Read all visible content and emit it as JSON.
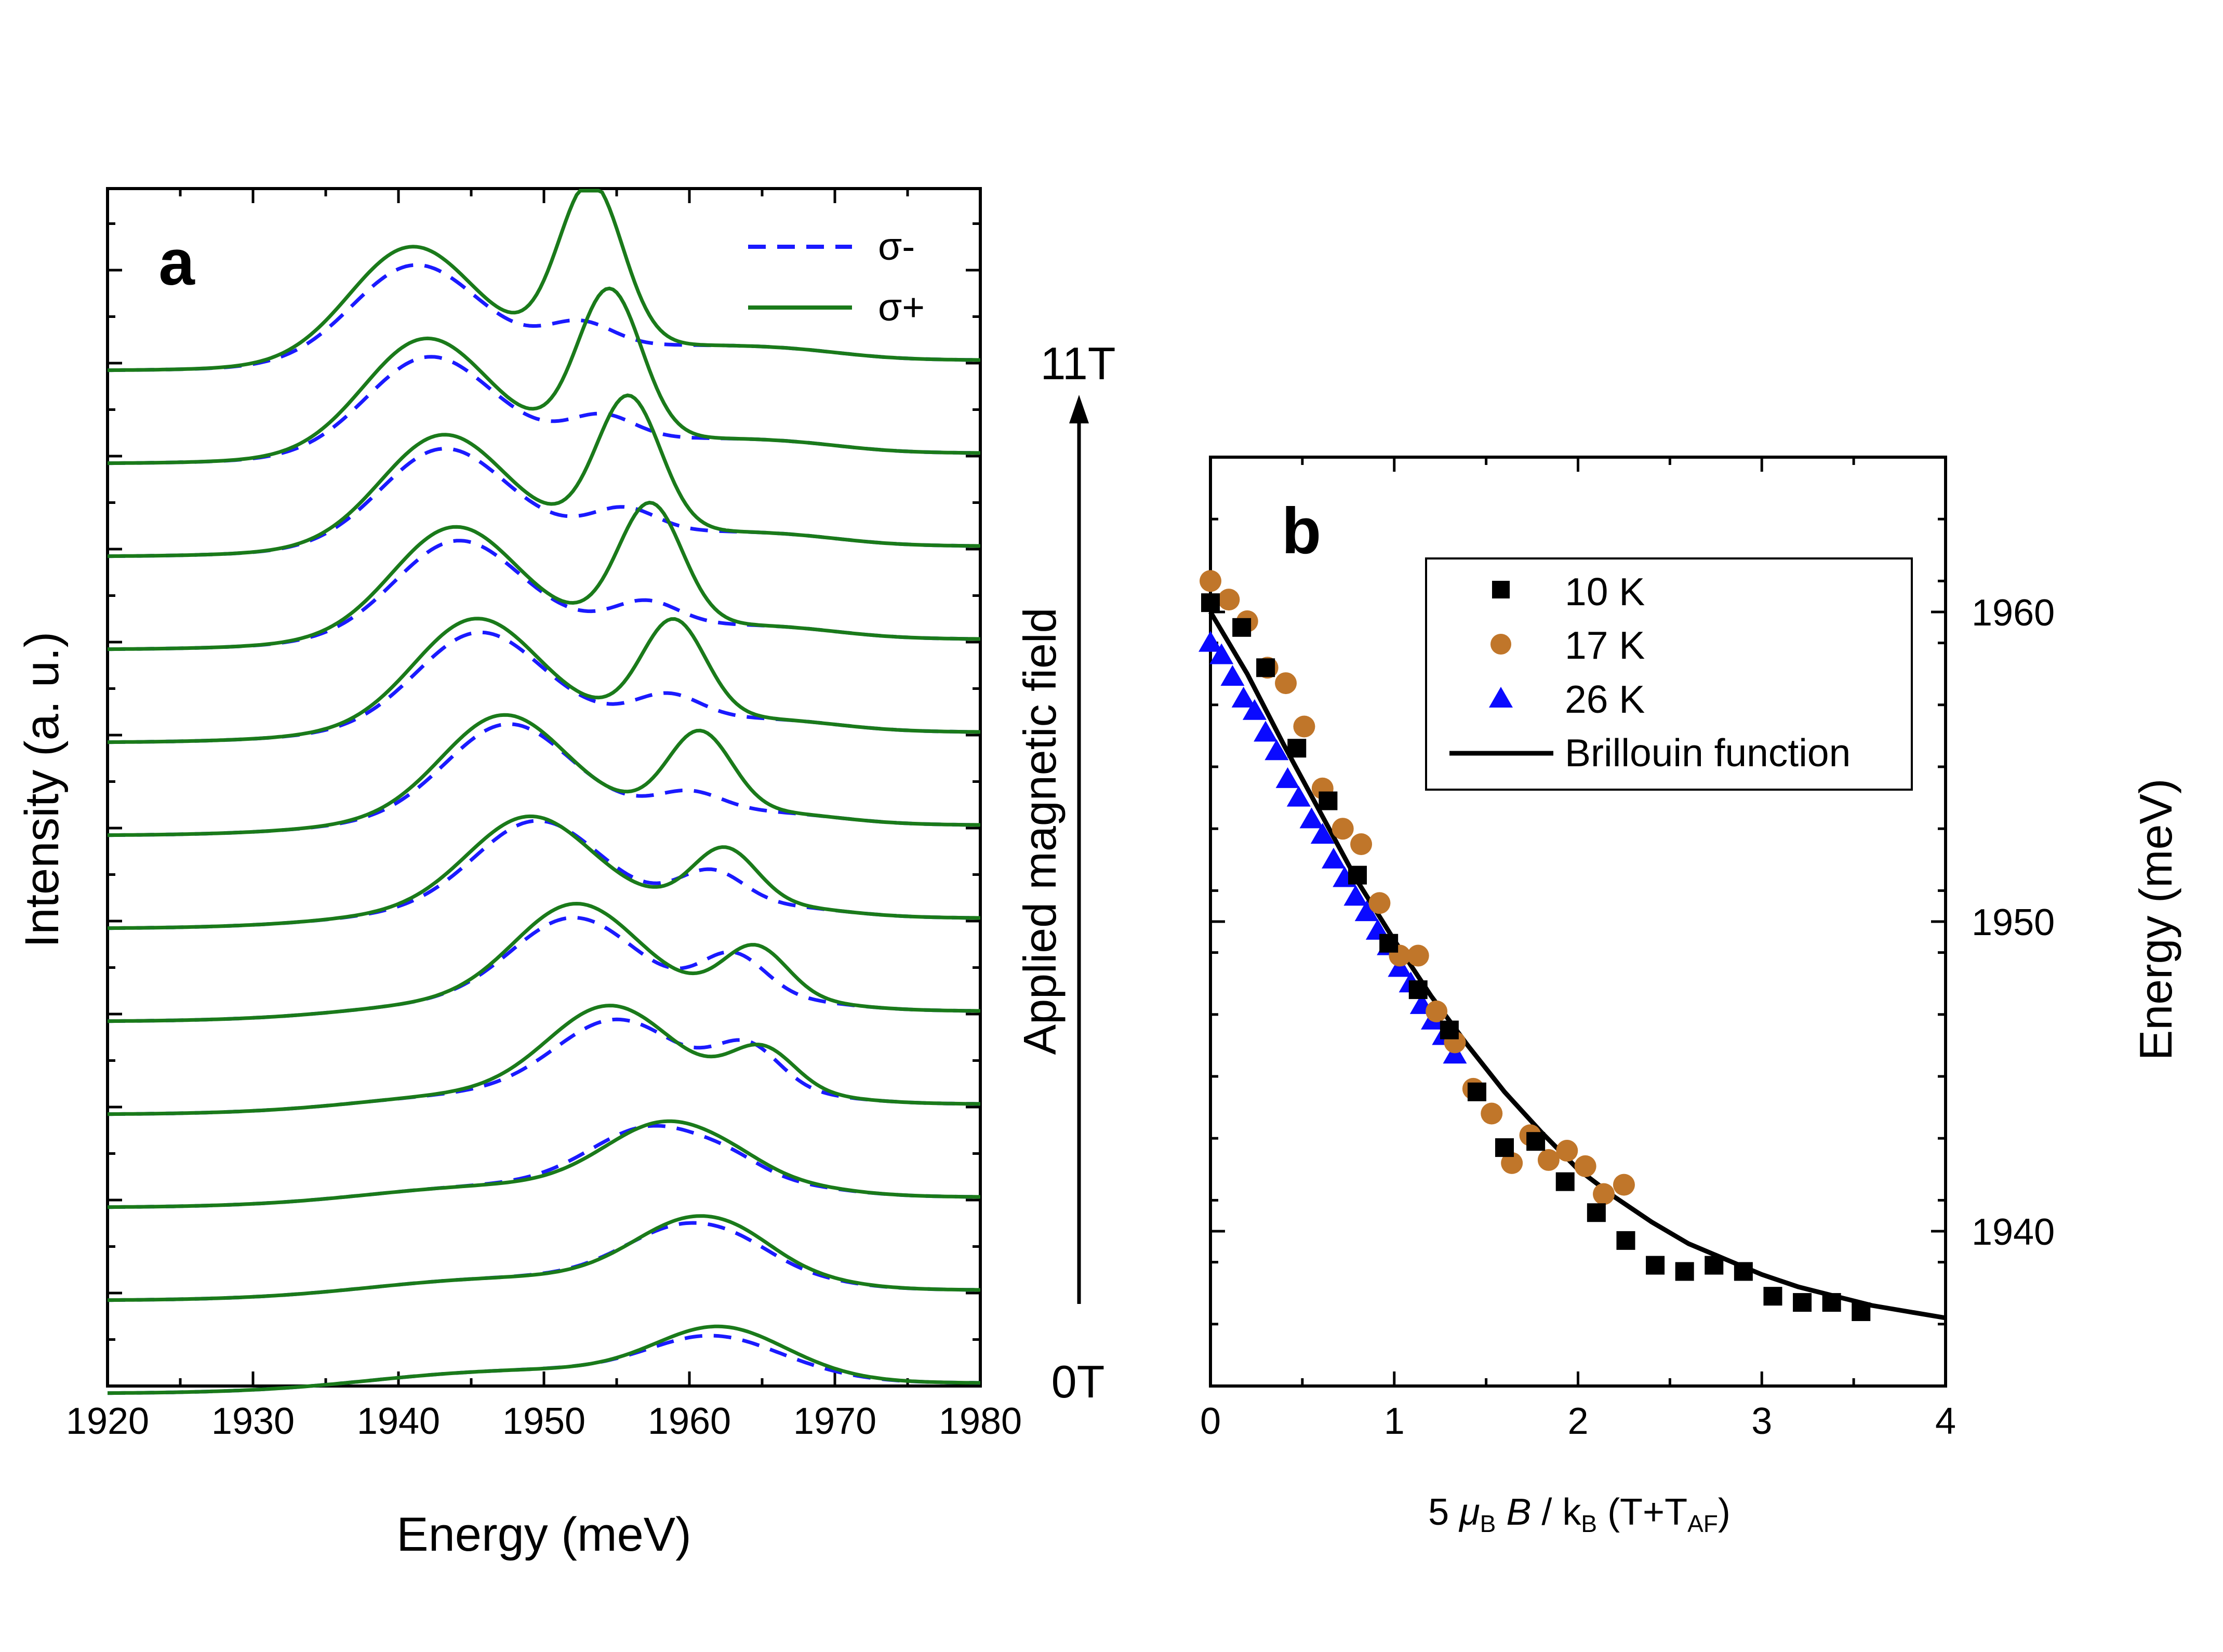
{
  "colors": {
    "sigma_minus": "#1a1aff",
    "sigma_plus": "#1a7a1a",
    "data_10K": "#000000",
    "data_17K": "#c0762a",
    "data_26K": "#0a0aff",
    "fit": "#000000"
  },
  "chart_data": [
    {
      "id": "a",
      "type": "line",
      "panel_label": "a",
      "xlabel": "Energy (meV)",
      "ylabel": "Intensity  (a. u.)",
      "xlim": [
        1920,
        1980
      ],
      "xticks": [
        "1920",
        "1930",
        "1940",
        "1950",
        "1960",
        "1970",
        "1980"
      ],
      "legend": {
        "placement": "top-right",
        "entries": [
          "σ-",
          "σ+"
        ]
      },
      "field_arrow": {
        "label": "Applied magnetic field",
        "top_label": "11T",
        "bottom_label": "0T"
      },
      "offset_step": 1,
      "spectra": [
        {
          "field_index": 11,
          "baseline": 11,
          "minus": {
            "peak_low": [
              1941.0,
              0.95
            ],
            "peak_high": [
              1952.5,
              0.25
            ]
          },
          "plus": {
            "peak_low": [
              1940.8,
              1.15
            ],
            "peak_high": [
              1953.2,
              1.75
            ]
          }
        },
        {
          "field_index": 10,
          "baseline": 10,
          "minus": {
            "peak_low": [
              1942.0,
              0.95
            ],
            "peak_high": [
              1954.0,
              0.25
            ]
          },
          "plus": {
            "peak_low": [
              1941.8,
              1.15
            ],
            "peak_high": [
              1954.5,
              1.6
            ]
          }
        },
        {
          "field_index": 9,
          "baseline": 9,
          "minus": {
            "peak_low": [
              1943.0,
              0.95
            ],
            "peak_high": [
              1955.5,
              0.25
            ]
          },
          "plus": {
            "peak_low": [
              1943.0,
              1.1
            ],
            "peak_high": [
              1955.8,
              1.45
            ]
          }
        },
        {
          "field_index": 8,
          "baseline": 8,
          "minus": {
            "peak_low": [
              1944.0,
              0.95
            ],
            "peak_high": [
              1957.0,
              0.25
            ]
          },
          "plus": {
            "peak_low": [
              1943.8,
              1.1
            ],
            "peak_high": [
              1957.3,
              1.3
            ]
          }
        },
        {
          "field_index": 7,
          "baseline": 7,
          "minus": {
            "peak_low": [
              1945.5,
              0.95
            ],
            "peak_high": [
              1958.5,
              0.25
            ]
          },
          "plus": {
            "peak_low": [
              1945.3,
              1.1
            ],
            "peak_high": [
              1958.9,
              1.05
            ]
          }
        },
        {
          "field_index": 6,
          "baseline": 6,
          "minus": {
            "peak_low": [
              1947.5,
              0.95
            ],
            "peak_high": [
              1960.0,
              0.2
            ]
          },
          "plus": {
            "peak_low": [
              1947.2,
              1.05
            ],
            "peak_high": [
              1960.7,
              0.85
            ]
          }
        },
        {
          "field_index": 5,
          "baseline": 5,
          "minus": {
            "peak_low": [
              1949.5,
              0.9
            ],
            "peak_high": [
              1961.5,
              0.35
            ]
          },
          "plus": {
            "peak_low": [
              1949.0,
              0.95
            ],
            "peak_high": [
              1962.4,
              0.6
            ]
          }
        },
        {
          "field_index": 4,
          "baseline": 4,
          "minus": {
            "peak_low": [
              1952.0,
              0.85
            ],
            "peak_high": [
              1963.0,
              0.45
            ]
          },
          "plus": {
            "peak_low": [
              1952.2,
              1.0
            ],
            "peak_high": [
              1964.5,
              0.55
            ]
          }
        },
        {
          "field_index": 3,
          "baseline": 3,
          "minus": {
            "peak_low": [
              1955.0,
              0.75
            ],
            "peak_high": [
              1964.0,
              0.45
            ]
          },
          "plus": {
            "peak_low": [
              1954.5,
              0.9
            ],
            "peak_high": [
              1965.0,
              0.45
            ]
          }
        },
        {
          "field_index": 2,
          "baseline": 2,
          "minus": {
            "peak_low": [
              1957.5,
              0.6
            ],
            "peak_high": [
              1963.0,
              0.1
            ]
          },
          "plus": {
            "peak_low": [
              1958.5,
              0.65
            ],
            "peak_high": [
              1963.5,
              0.05
            ]
          }
        },
        {
          "field_index": 1,
          "baseline": 1,
          "minus": {
            "peak_low": [
              1960.0,
              0.55
            ],
            "peak_high": [
              1964.0,
              0.05
            ]
          },
          "plus": {
            "peak_low": [
              1960.5,
              0.62
            ],
            "peak_high": [
              1964.0,
              0.05
            ]
          }
        },
        {
          "field_index": 0,
          "baseline": 0,
          "minus": {
            "peak_low": [
              1961.5,
              0.35
            ],
            "peak_high": [
              1965.0,
              0.0
            ]
          },
          "plus": {
            "peak_low": [
              1962.0,
              0.45
            ],
            "peak_high": [
              1965.0,
              0.0
            ]
          }
        }
      ]
    },
    {
      "id": "b",
      "type": "scatter",
      "panel_label": "b",
      "xlabel": "5 μB B  / kB (T+TAF)",
      "xlabel_parts": {
        "prefix": "5 ",
        "mu": "μ",
        "b1": "B",
        "var_b": "B",
        "slash": "  / k",
        "b2": "B",
        "open": " (T+T",
        "af": "AF",
        "close": ")"
      },
      "ylabel": "Energy (meV)",
      "xlim": [
        0,
        4
      ],
      "ylim": [
        1935,
        1965
      ],
      "xticks": [
        "0",
        "1",
        "2",
        "3",
        "4"
      ],
      "yticks": [
        "1940",
        "1950",
        "1960"
      ],
      "legend": {
        "placement": "top-right"
      },
      "series": [
        {
          "name": "10 K",
          "marker": "square",
          "x": [
            0.0,
            0.17,
            0.3,
            0.47,
            0.64,
            0.8,
            0.97,
            1.13,
            1.3,
            1.45,
            1.6,
            1.77,
            1.93,
            2.1,
            2.26,
            2.42,
            2.58,
            2.74,
            2.9,
            3.06,
            3.22,
            3.38,
            3.54
          ],
          "y": [
            1960.3,
            1959.5,
            1958.2,
            1955.6,
            1953.9,
            1951.5,
            1949.3,
            1947.8,
            1946.5,
            1944.5,
            1942.7,
            1942.9,
            1941.6,
            1940.6,
            1939.7,
            1938.9,
            1938.7,
            1938.9,
            1938.7,
            1937.9,
            1937.7,
            1937.7,
            1937.4
          ]
        },
        {
          "name": "17 K",
          "marker": "circle",
          "x": [
            0.0,
            0.1,
            0.2,
            0.31,
            0.41,
            0.51,
            0.61,
            0.72,
            0.82,
            0.92,
            1.03,
            1.13,
            1.23,
            1.33,
            1.43,
            1.53,
            1.64,
            1.74,
            1.84,
            1.94,
            2.04,
            2.14,
            2.25
          ],
          "y": [
            1961.0,
            1960.4,
            1959.7,
            1958.2,
            1957.7,
            1956.3,
            1954.3,
            1953.0,
            1952.5,
            1950.6,
            1948.9,
            1948.9,
            1947.1,
            1946.1,
            1944.6,
            1943.8,
            1942.2,
            1943.1,
            1942.3,
            1942.6,
            1942.1,
            1941.2,
            1941.5
          ]
        },
        {
          "name": "26 K",
          "marker": "triangle",
          "x": [
            0.0,
            0.06,
            0.12,
            0.18,
            0.24,
            0.3,
            0.36,
            0.42,
            0.48,
            0.55,
            0.61,
            0.67,
            0.73,
            0.79,
            0.85,
            0.91,
            0.97,
            1.03,
            1.09,
            1.15,
            1.21,
            1.27,
            1.33
          ],
          "y": [
            1959.0,
            1958.6,
            1957.9,
            1957.2,
            1956.8,
            1956.1,
            1955.5,
            1954.6,
            1954.0,
            1953.3,
            1952.8,
            1952.0,
            1951.4,
            1950.8,
            1950.3,
            1949.7,
            1949.2,
            1948.5,
            1948.0,
            1947.3,
            1946.8,
            1946.3,
            1945.7
          ]
        },
        {
          "name": "Brillouin function",
          "marker": "line",
          "x": [
            0.0,
            0.2,
            0.4,
            0.6,
            0.8,
            1.0,
            1.2,
            1.4,
            1.6,
            1.8,
            2.0,
            2.2,
            2.4,
            2.6,
            2.8,
            3.0,
            3.2,
            3.4,
            3.6,
            3.8,
            4.0
          ],
          "y": [
            1960.0,
            1958.0,
            1955.7,
            1953.5,
            1951.3,
            1949.4,
            1947.6,
            1946.0,
            1944.5,
            1943.2,
            1942.0,
            1941.1,
            1940.3,
            1939.6,
            1939.1,
            1938.6,
            1938.2,
            1937.9,
            1937.6,
            1937.4,
            1937.2
          ]
        }
      ]
    }
  ]
}
